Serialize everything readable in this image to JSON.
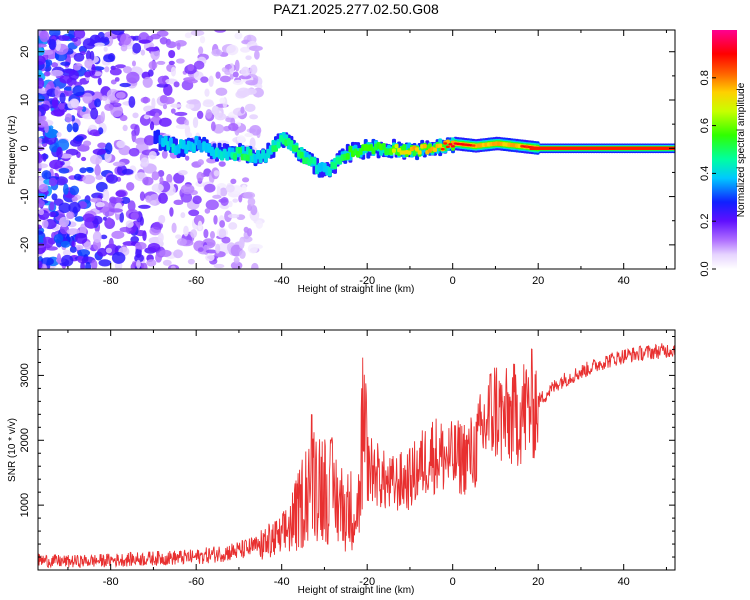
{
  "title": "PAZ1.2025.277.02.50.G08",
  "chart_data": [
    {
      "type": "heatmap",
      "title": "PAZ1.2025.277.02.50.G08",
      "xlabel": "Height of straight line (km)",
      "ylabel": "Frequency (Hz)",
      "xlim": [
        -97,
        52
      ],
      "ylim": [
        -25,
        24.5
      ],
      "x_ticks": [
        -80,
        -60,
        -40,
        -20,
        0,
        20,
        40
      ],
      "y_ticks": [
        -20,
        -10,
        0,
        10,
        20
      ],
      "x_tick_labels": [
        "-80",
        "-60",
        "-40",
        "-20",
        "0",
        "20",
        "40"
      ],
      "y_tick_labels": [
        "-20",
        "-10",
        "0",
        "10",
        "20"
      ],
      "ridge": {
        "description_points_height_km": [
          -70,
          -65,
          -60,
          -55,
          -50,
          -45,
          -40,
          -35,
          -30,
          -25,
          -20,
          -15,
          -10,
          -5,
          0,
          5,
          10,
          15,
          20,
          30,
          40,
          52
        ],
        "frequency_hz": [
          2,
          0,
          1,
          -1,
          -1,
          -2,
          2,
          -2,
          -5,
          -1,
          0,
          0,
          -0.5,
          0,
          1,
          0.5,
          1,
          0.5,
          0,
          0,
          0,
          0
        ],
        "amplitude": [
          0.3,
          0.45,
          0.35,
          0.45,
          0.5,
          0.45,
          0.5,
          0.5,
          0.45,
          0.55,
          0.6,
          0.65,
          0.75,
          0.8,
          0.95,
          0.85,
          0.8,
          0.85,
          0.95,
          1.0,
          1.0,
          1.0
        ]
      },
      "noise_region_km": [
        -97,
        -45
      ],
      "colorbar": {
        "label": "Normalized spectral amplitude",
        "ticks": [
          0.0,
          0.2,
          0.4,
          0.6,
          0.8
        ],
        "tick_labels": [
          "0.0",
          "0.2",
          "0.4",
          "0.6",
          "0.8"
        ],
        "range": [
          0,
          1
        ]
      }
    },
    {
      "type": "line",
      "xlabel": "Height of straight line (km)",
      "ylabel": "SNR (10 * v/v)",
      "xlim": [
        -97,
        52
      ],
      "ylim": [
        0,
        3700
      ],
      "x_ticks": [
        -80,
        -60,
        -40,
        -20,
        0,
        20,
        40
      ],
      "y_ticks": [
        1000,
        2000,
        3000
      ],
      "x_tick_labels": [
        "-80",
        "-60",
        "-40",
        "-20",
        "0",
        "20",
        "40"
      ],
      "y_tick_labels": [
        "1000",
        "2000",
        "3000"
      ],
      "series": [
        {
          "name": "SNR",
          "color": "#e83030",
          "x": [
            -97,
            -90,
            -80,
            -70,
            -60,
            -55,
            -50,
            -45,
            -40,
            -36,
            -33,
            -30,
            -28,
            -25,
            -22,
            -21,
            -20,
            -18,
            -15,
            -10,
            -5,
            0,
            5,
            8,
            10,
            12,
            15,
            20,
            25,
            30,
            35,
            40,
            45,
            52
          ],
          "y": [
            150,
            130,
            150,
            180,
            200,
            250,
            300,
            380,
            500,
            900,
            1500,
            1300,
            1200,
            900,
            1000,
            2200,
            1600,
            1500,
            1300,
            1400,
            1800,
            1700,
            1800,
            2300,
            2500,
            2300,
            2400,
            2600,
            2900,
            3050,
            3200,
            3300,
            3350,
            3400
          ]
        }
      ]
    }
  ],
  "colors": {
    "line": "#e83030",
    "axis": "#000000",
    "background": "#ffffff"
  }
}
